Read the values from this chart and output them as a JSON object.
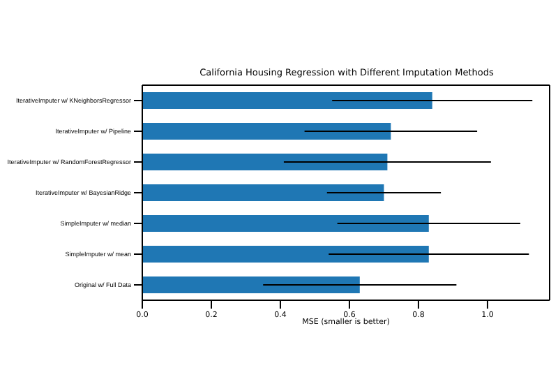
{
  "chart_data": {
    "type": "bar",
    "orientation": "horizontal",
    "title": "California Housing Regression with Different Imputation Methods",
    "xlabel": "MSE (smaller is better)",
    "categories": [
      "IterativeImputer w/ KNeighborsRegressor",
      "IterativeImputer w/ Pipeline",
      "IterativeImputer w/ RandomForestRegressor",
      "IterativeImputer w/ BayesianRidge",
      "SimpleImputer w/ median",
      "SimpleImputer w/ mean",
      "Original w/ Full Data"
    ],
    "values": [
      0.84,
      0.72,
      0.71,
      0.7,
      0.83,
      0.83,
      0.63
    ],
    "errors": [
      0.29,
      0.25,
      0.3,
      0.165,
      0.265,
      0.29,
      0.28
    ],
    "color": "#1f77b4",
    "xlim": [
      0,
      1.18
    ],
    "xticks": [
      {
        "value": 0,
        "label": "0.0"
      },
      0.2,
      0.4,
      0.6,
      0.8,
      {
        "value": 1,
        "label": "1.0"
      }
    ],
    "grid": false
  }
}
